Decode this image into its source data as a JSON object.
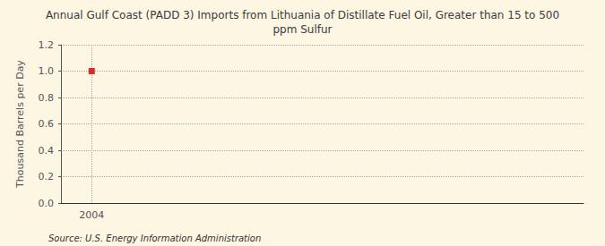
{
  "chart_data": {
    "type": "scatter",
    "title": "Annual Gulf Coast (PADD 3) Imports from Lithuania of Distillate Fuel Oil, Greater than 15 to 500\nppm Sulfur",
    "ylabel": "Thousand Barrels per Day",
    "annotations": [
      "Source: U.S. Energy Information Administration"
    ],
    "x": [
      2004
    ],
    "values": [
      1.0
    ],
    "color": "#cc0000",
    "marker": "square",
    "xlim": [
      2003.4,
      2013.6
    ],
    "xticks": [
      2004
    ],
    "ylim": [
      0.0,
      1.2
    ],
    "yticks": [
      {
        "value": 0,
        "label": "0.0"
      },
      0.2,
      0.4,
      0.6,
      0.8,
      {
        "value": 1,
        "label": "1.0"
      },
      1.2
    ],
    "grid": true
  }
}
